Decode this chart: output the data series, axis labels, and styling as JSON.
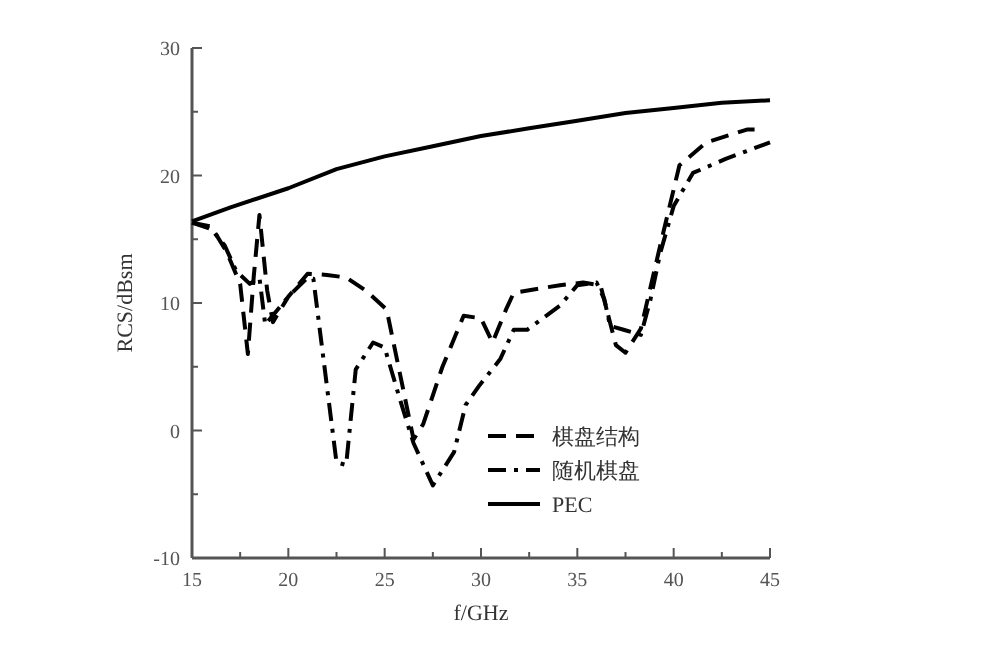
{
  "chart_data": {
    "type": "line",
    "xlabel": "f/GHz",
    "ylabel": "RCS/dBsm",
    "xlim": [
      15,
      45
    ],
    "ylim": [
      -10,
      30
    ],
    "xticks": [
      15,
      {
        "value": 17.5,
        "label": null
      },
      20,
      {
        "value": 22.5,
        "label": null
      },
      25,
      {
        "value": 27.5,
        "label": null
      },
      30,
      {
        "value": 32.5,
        "label": null
      },
      35,
      {
        "value": 37.5,
        "label": null
      },
      40,
      {
        "value": 42.5,
        "label": null
      },
      45
    ],
    "yticks": [
      -10,
      {
        "value": -5,
        "label": null
      },
      0,
      {
        "value": 5,
        "label": null
      },
      10,
      {
        "value": 15,
        "label": null
      },
      20,
      {
        "value": 25,
        "label": null
      },
      30
    ],
    "legend": "bottom right",
    "series": [
      {
        "name": "棋盘结构",
        "color": "#000000",
        "line_style": "dashed",
        "x": [
          15,
          16,
          16.8,
          17.5,
          17.9,
          18.2,
          18.5,
          18.9,
          19.2,
          20,
          21,
          22,
          23,
          24,
          25.1,
          26.5,
          27,
          28,
          29.1,
          30,
          30.6,
          31.3,
          31.7,
          34.1,
          35.3,
          36.2,
          37,
          37.5,
          38.3,
          39.3,
          40.3,
          41.7,
          43.8,
          44.2
        ],
        "values": [
          16.3,
          16,
          14,
          11.5,
          6,
          12,
          16.9,
          11,
          8.5,
          10.5,
          12.3,
          12.2,
          12,
          11,
          9.5,
          -0.7,
          0.5,
          5,
          9,
          8.8,
          6.9,
          9.5,
          10.8,
          11.4,
          11.6,
          11.4,
          6.7,
          6.1,
          8,
          14.5,
          20.8,
          22.6,
          23.6,
          23.6
        ]
      },
      {
        "name": "随机棋盘",
        "color": "#000000",
        "line_style": "dashdot",
        "x": [
          15,
          16,
          16.7,
          17.3,
          18,
          18.5,
          18.8,
          20,
          21,
          21.3,
          22.5,
          23,
          23.5,
          24.4,
          25,
          25.8,
          26.5,
          27.5,
          28.6,
          29.2,
          29.9,
          31,
          31.7,
          32.4,
          34.1,
          35,
          36,
          36.4,
          36.7,
          37.4,
          38.3,
          38.8,
          39.3,
          40,
          41,
          42.7,
          45
        ],
        "values": [
          16.3,
          15.8,
          14.5,
          12.5,
          11.5,
          12,
          8.3,
          10.5,
          12,
          11.9,
          -2.5,
          -2.7,
          4.8,
          6.9,
          6.5,
          2.4,
          -1,
          -4.3,
          -1.7,
          2,
          3.5,
          5.6,
          7.9,
          7.9,
          9.8,
          11.4,
          11.6,
          10.3,
          8.2,
          7.9,
          7.5,
          10.3,
          13.9,
          17.6,
          20.2,
          21.3,
          22.6
        ]
      },
      {
        "name": "PEC",
        "color": "#000000",
        "line_style": "solid",
        "x": [
          15,
          17,
          20,
          22.5,
          25,
          27.5,
          30,
          32.5,
          35,
          37.5,
          40,
          42.5,
          45
        ],
        "values": [
          16.4,
          17.5,
          19,
          20.5,
          21.5,
          22.3,
          23.1,
          23.7,
          24.3,
          24.9,
          25.3,
          25.7,
          25.9
        ]
      }
    ]
  }
}
